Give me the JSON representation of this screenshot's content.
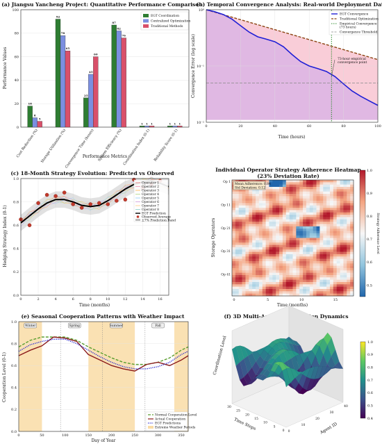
{
  "chart_data": [
    {
      "id": "a",
      "type": "bar",
      "title": "(a) Jiangsu Yancheng Project: Quantitative Performance Comparison",
      "xlabel": "Performance Metrics",
      "ylabel": "Performance Values",
      "ylim": [
        0,
        100
      ],
      "categories": [
        "Cost Reduction (%)",
        "Storage Utilization (%)",
        "Convergence Time (hours)",
        "System Efficiency (%)",
        "Coordination Index (0-1)",
        "Reliability Score (0-1)"
      ],
      "series": [
        {
          "name": "EGT Coordination",
          "color": "#2e7d32",
          "values": [
            18,
            92,
            25,
            87,
            1,
            1
          ]
        },
        {
          "name": "Centralized Optimization",
          "color": "#7b8fe0",
          "values": [
            8,
            78,
            45,
            82,
            1,
            1
          ]
        },
        {
          "name": "Traditional Methods",
          "color": "#d9506a",
          "values": [
            5,
            65,
            60,
            76,
            1,
            1
          ]
        }
      ],
      "legend": "top-right"
    },
    {
      "id": "b",
      "type": "line",
      "title": "(b) Temporal Convergence Analysis: Real-world Deployment Data",
      "xlabel": "Time (hours)",
      "ylabel": "Convergence Error (log scale)",
      "xlim": [
        0,
        100
      ],
      "ylim": [
        0.01,
        1
      ],
      "yscale": "log",
      "xticks": [
        0,
        20,
        40,
        60,
        80,
        100
      ],
      "yticks": [
        {
          "v": 1,
          "t": "10⁰"
        },
        {
          "v": 0.1,
          "t": "10⁻¹"
        },
        {
          "v": 0.01,
          "t": "10⁻²"
        }
      ],
      "series": [
        {
          "name": "EGT Convergence",
          "color": "#1f1fd6",
          "x": [
            0,
            5,
            10,
            15,
            20,
            25,
            30,
            35,
            40,
            45,
            50,
            55,
            60,
            65,
            70,
            75,
            80,
            85,
            90,
            95,
            100
          ],
          "y": [
            1,
            0.92,
            0.82,
            0.68,
            0.52,
            0.4,
            0.33,
            0.3,
            0.27,
            0.22,
            0.16,
            0.12,
            0.1,
            0.09,
            0.08,
            0.065,
            0.048,
            0.036,
            0.029,
            0.024,
            0.02
          ]
        },
        {
          "name": "Traditional Optimization",
          "color": "#8b4513",
          "x": [
            0,
            100
          ],
          "y": [
            1,
            0.13
          ]
        }
      ],
      "vline": {
        "x": 73,
        "name": "Empirical Convergence (73 hours)",
        "color": "#2e8b2e"
      },
      "hline": {
        "y": 0.05,
        "name": "Convergence Threshold",
        "color": "#888888"
      },
      "annotation": "73-hour empirical convergence point",
      "legend": "top-right"
    },
    {
      "id": "c",
      "type": "line",
      "title": "(c) 18-Month Strategy Evolution: Predicted vs Observed",
      "xlabel": "Time (months)",
      "ylabel": "Hedging Strategy Index (0-1)",
      "xlim": [
        0,
        17
      ],
      "ylim": [
        0,
        1
      ],
      "xticks": [
        0,
        2,
        4,
        6,
        8,
        10,
        12,
        14,
        16
      ],
      "yticks": [
        0,
        0.2,
        0.4,
        0.6,
        0.8,
        1.0
      ],
      "prediction": {
        "name": "EGT Prediction",
        "x": [
          0,
          1,
          2,
          3,
          4,
          5,
          6,
          7,
          8,
          9,
          10,
          11,
          12,
          13,
          14,
          15,
          16,
          17
        ],
        "y": [
          0.62,
          0.68,
          0.74,
          0.79,
          0.82,
          0.82,
          0.8,
          0.77,
          0.76,
          0.77,
          0.81,
          0.86,
          0.91,
          0.95,
          0.97,
          0.98,
          0.96,
          0.93
        ]
      },
      "observed": {
        "name": "Observed Average",
        "x": [
          0,
          1,
          2,
          3,
          4,
          5,
          6,
          7,
          8,
          9,
          10,
          11,
          12,
          13,
          14,
          15,
          16
        ],
        "y": [
          0.65,
          0.6,
          0.79,
          0.86,
          0.85,
          0.88,
          0.78,
          0.75,
          0.78,
          0.79,
          0.78,
          0.81,
          0.82,
          0.99,
          0.92,
          0.95,
          0.98
        ]
      },
      "band_name": "±7% Prediction Band",
      "operators": [
        "Operator 1",
        "Operator 2",
        "Operator 3",
        "Operator 4",
        "Operator 5",
        "Operator 6",
        "Operator 7",
        "Operator 8"
      ],
      "legend": "top-right"
    },
    {
      "id": "d",
      "type": "heatmap",
      "title": "(d) Individual Operator Strategy Adherence Heatmap (23% Deviation Rate)",
      "xlabel": "Time (months)",
      "ylabel": "Storage Operators",
      "xticks": [
        0,
        5,
        10,
        15
      ],
      "yticks": [
        "Op 1",
        "Op 11",
        "Op 21",
        "Op 31",
        "Op 41"
      ],
      "colorbar_label": "Strategy Adherence Level",
      "colorbar_ticks": [
        0.5,
        0.6,
        0.7,
        0.8,
        0.9,
        1.0
      ],
      "stats": [
        "Mean Adherence: 0.84",
        "Std Deviation: 0.12"
      ]
    },
    {
      "id": "e",
      "type": "line",
      "title": "(e) Seasonal Cooperation Patterns with Weather Impact",
      "xlabel": "Day of Year",
      "ylabel": "Cooperation Level (0-1)",
      "xlim": [
        0,
        365
      ],
      "ylim": [
        0,
        1
      ],
      "xticks": [
        0,
        50,
        100,
        150,
        200,
        250,
        300,
        350
      ],
      "yticks": [
        0,
        0.2,
        0.4,
        0.6,
        0.8,
        1.0
      ],
      "seasons": [
        {
          "name": "Winter",
          "x": 25
        },
        {
          "name": "Spring",
          "x": 120
        },
        {
          "name": "Summer",
          "x": 210
        },
        {
          "name": "Fall",
          "x": 300
        }
      ],
      "weather_periods": [
        [
          0,
          50
        ],
        [
          150,
          250
        ],
        [
          335,
          365
        ]
      ],
      "series": [
        {
          "name": "Normal Cooperation Level",
          "color": "#5a9e2f",
          "style": "dashed",
          "x": [
            0,
            25,
            50,
            75,
            100,
            125,
            150,
            175,
            200,
            225,
            250,
            275,
            300,
            325,
            350,
            365
          ],
          "y": [
            0.77,
            0.83,
            0.86,
            0.86,
            0.86,
            0.83,
            0.77,
            0.72,
            0.67,
            0.63,
            0.61,
            0.61,
            0.63,
            0.67,
            0.74,
            0.77
          ]
        },
        {
          "name": "Actual Cooperation",
          "color": "#8b1a1a",
          "style": "solid",
          "x": [
            0,
            25,
            50,
            75,
            100,
            125,
            150,
            175,
            200,
            225,
            250,
            275,
            300,
            325,
            350,
            365
          ],
          "y": [
            0.69,
            0.74,
            0.78,
            0.86,
            0.85,
            0.82,
            0.7,
            0.65,
            0.6,
            0.57,
            0.55,
            0.61,
            0.63,
            0.6,
            0.65,
            0.69
          ]
        },
        {
          "name": "EGT Predictions",
          "color": "#2222cc",
          "style": "dotted",
          "x": [
            0,
            25,
            50,
            75,
            100,
            125,
            150,
            175,
            200,
            225,
            250,
            275,
            300,
            325,
            350,
            365
          ],
          "y": [
            0.73,
            0.79,
            0.82,
            0.84,
            0.84,
            0.8,
            0.74,
            0.68,
            0.63,
            0.59,
            0.57,
            0.57,
            0.59,
            0.63,
            0.7,
            0.73
          ]
        }
      ],
      "weather_name": "Extreme Weather Periods",
      "legend": "bottom-right"
    },
    {
      "id": "f",
      "type": "surface",
      "title": "(f) 3D Multi-Agent Coordination Dynamics",
      "xlabel": "Time Steps",
      "ylabel": "Agent ID",
      "zlabel": "Coordination Level",
      "xticks": [
        0,
        5,
        10,
        15,
        20,
        25,
        30
      ],
      "yticks": [
        0,
        10,
        20,
        30,
        40
      ],
      "colorbar_ticks": [
        0.4,
        0.5,
        0.6,
        0.7,
        0.8,
        0.9,
        1.0
      ]
    }
  ]
}
